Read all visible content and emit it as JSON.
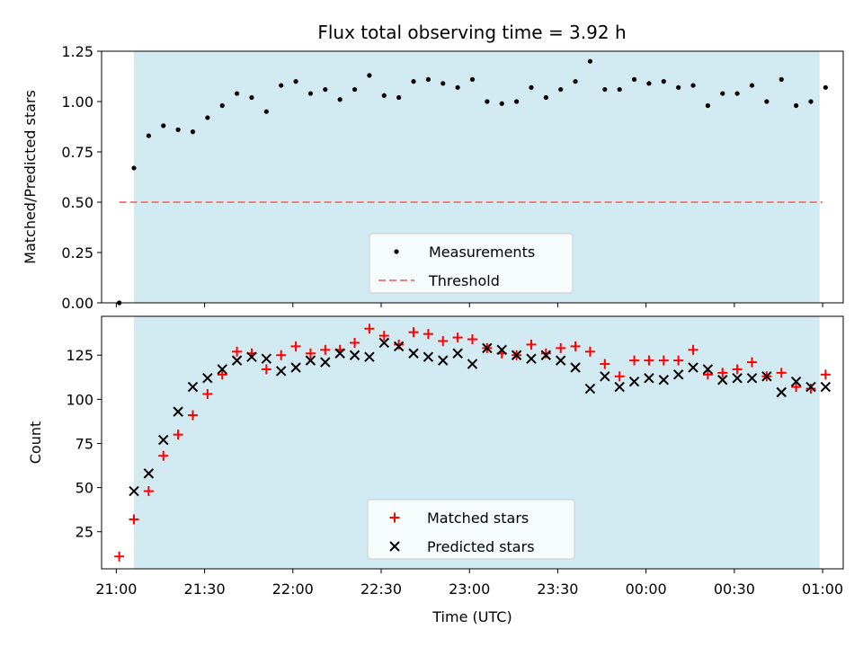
{
  "title": "Flux total observing time = 3.92 h",
  "colors": {
    "shade": "#add8e6",
    "measurement": "#000000",
    "threshold": "#f08080",
    "matched": "#ff0000",
    "predicted": "#000000"
  },
  "chart_data": [
    {
      "type": "scatter",
      "ylabel": "Matched/Predicted stars",
      "ylim": [
        0,
        1.25
      ],
      "yticks": [
        0,
        0.25,
        0.5,
        0.75,
        1.0,
        1.25
      ],
      "ytick_labels": [
        "0.00",
        "0.25",
        "0.50",
        "0.75",
        "1.00",
        "1.25"
      ],
      "shaded_span": [
        "21:06",
        "00:59"
      ],
      "legend": {
        "placement": "lower center",
        "entries": [
          "Measurements",
          "Threshold"
        ]
      },
      "threshold": {
        "name": "Threshold",
        "value": 0.5,
        "x_start": "21:01",
        "x_end": "01:00",
        "style": "dashed"
      },
      "series": [
        {
          "name": "Measurements",
          "marker": "dot",
          "points": [
            [
              "21:01",
              0.0
            ],
            [
              "21:06",
              0.67
            ],
            [
              "21:11",
              0.83
            ],
            [
              "21:16",
              0.88
            ],
            [
              "21:21",
              0.86
            ],
            [
              "21:26",
              0.85
            ],
            [
              "21:31",
              0.92
            ],
            [
              "21:36",
              0.98
            ],
            [
              "21:41",
              1.04
            ],
            [
              "21:46",
              1.02
            ],
            [
              "21:51",
              0.95
            ],
            [
              "21:56",
              1.08
            ],
            [
              "22:01",
              1.1
            ],
            [
              "22:06",
              1.04
            ],
            [
              "22:11",
              1.06
            ],
            [
              "22:16",
              1.01
            ],
            [
              "22:21",
              1.06
            ],
            [
              "22:26",
              1.13
            ],
            [
              "22:31",
              1.03
            ],
            [
              "22:36",
              1.02
            ],
            [
              "22:41",
              1.1
            ],
            [
              "22:46",
              1.11
            ],
            [
              "22:51",
              1.09
            ],
            [
              "22:56",
              1.07
            ],
            [
              "23:01",
              1.11
            ],
            [
              "23:06",
              1.0
            ],
            [
              "23:11",
              0.99
            ],
            [
              "23:16",
              1.0
            ],
            [
              "23:21",
              1.07
            ],
            [
              "23:26",
              1.02
            ],
            [
              "23:31",
              1.06
            ],
            [
              "23:36",
              1.1
            ],
            [
              "23:41",
              1.2
            ],
            [
              "23:46",
              1.06
            ],
            [
              "23:51",
              1.06
            ],
            [
              "23:56",
              1.11
            ],
            [
              "00:01",
              1.09
            ],
            [
              "00:06",
              1.1
            ],
            [
              "00:11",
              1.07
            ],
            [
              "00:16",
              1.08
            ],
            [
              "00:21",
              0.98
            ],
            [
              "00:26",
              1.04
            ],
            [
              "00:31",
              1.04
            ],
            [
              "00:36",
              1.08
            ],
            [
              "00:41",
              1.0
            ],
            [
              "00:46",
              1.11
            ],
            [
              "00:51",
              0.98
            ],
            [
              "00:56",
              1.0
            ],
            [
              "01:01",
              1.07
            ]
          ]
        }
      ]
    },
    {
      "type": "scatter",
      "xlabel": "Time (UTC)",
      "ylabel": "Count",
      "ylim": [
        4,
        147
      ],
      "yticks": [
        25,
        50,
        75,
        100,
        125
      ],
      "ytick_labels": [
        "25",
        "50",
        "75",
        "100",
        "125"
      ],
      "xlim": [
        "20:55",
        "01:07"
      ],
      "xticks": [
        "21:00",
        "21:30",
        "22:00",
        "22:30",
        "23:00",
        "23:30",
        "00:00",
        "00:30",
        "01:00"
      ],
      "xtick_labels": [
        "21:00",
        "21:30",
        "22:00",
        "22:30",
        "23:00",
        "23:30",
        "00:00",
        "00:30",
        "01:00"
      ],
      "shaded_span": [
        "21:06",
        "00:59"
      ],
      "legend": {
        "placement": "lower center",
        "entries": [
          "Matched stars",
          "Predicted stars"
        ]
      },
      "series": [
        {
          "name": "Matched stars",
          "marker": "plus",
          "points": [
            [
              "21:01",
              11
            ],
            [
              "21:06",
              32
            ],
            [
              "21:11",
              48
            ],
            [
              "21:16",
              68
            ],
            [
              "21:21",
              80
            ],
            [
              "21:26",
              91
            ],
            [
              "21:31",
              103
            ],
            [
              "21:36",
              114
            ],
            [
              "21:41",
              127
            ],
            [
              "21:46",
              126
            ],
            [
              "21:51",
              117
            ],
            [
              "21:56",
              125
            ],
            [
              "22:01",
              130
            ],
            [
              "22:06",
              126
            ],
            [
              "22:11",
              128
            ],
            [
              "22:16",
              128
            ],
            [
              "22:21",
              132
            ],
            [
              "22:26",
              140
            ],
            [
              "22:31",
              136
            ],
            [
              "22:36",
              131
            ],
            [
              "22:41",
              138
            ],
            [
              "22:46",
              137
            ],
            [
              "22:51",
              133
            ],
            [
              "22:56",
              135
            ],
            [
              "23:01",
              134
            ],
            [
              "23:06",
              129
            ],
            [
              "23:11",
              126
            ],
            [
              "23:16",
              125
            ],
            [
              "23:21",
              131
            ],
            [
              "23:26",
              126
            ],
            [
              "23:31",
              129
            ],
            [
              "23:36",
              130
            ],
            [
              "23:41",
              127
            ],
            [
              "23:46",
              120
            ],
            [
              "23:51",
              113
            ],
            [
              "23:56",
              122
            ],
            [
              "00:01",
              122
            ],
            [
              "00:06",
              122
            ],
            [
              "00:11",
              122
            ],
            [
              "00:16",
              128
            ],
            [
              "00:21",
              114
            ],
            [
              "00:26",
              115
            ],
            [
              "00:31",
              117
            ],
            [
              "00:36",
              121
            ],
            [
              "00:41",
              113
            ],
            [
              "00:46",
              115
            ],
            [
              "00:51",
              107
            ],
            [
              "00:56",
              106
            ],
            [
              "01:01",
              114
            ]
          ]
        },
        {
          "name": "Predicted stars",
          "marker": "x",
          "points": [
            [
              "21:06",
              48
            ],
            [
              "21:11",
              58
            ],
            [
              "21:16",
              77
            ],
            [
              "21:21",
              93
            ],
            [
              "21:26",
              107
            ],
            [
              "21:31",
              112
            ],
            [
              "21:36",
              117
            ],
            [
              "21:41",
              122
            ],
            [
              "21:46",
              124
            ],
            [
              "21:51",
              123
            ],
            [
              "21:56",
              116
            ],
            [
              "22:01",
              118
            ],
            [
              "22:06",
              122
            ],
            [
              "22:11",
              121
            ],
            [
              "22:16",
              126
            ],
            [
              "22:21",
              125
            ],
            [
              "22:26",
              124
            ],
            [
              "22:31",
              132
            ],
            [
              "22:36",
              130
            ],
            [
              "22:41",
              126
            ],
            [
              "22:46",
              124
            ],
            [
              "22:51",
              122
            ],
            [
              "22:56",
              126
            ],
            [
              "23:01",
              120
            ],
            [
              "23:06",
              129
            ],
            [
              "23:11",
              128
            ],
            [
              "23:16",
              125
            ],
            [
              "23:21",
              123
            ],
            [
              "23:26",
              125
            ],
            [
              "23:31",
              122
            ],
            [
              "23:36",
              118
            ],
            [
              "23:41",
              106
            ],
            [
              "23:46",
              113
            ],
            [
              "23:51",
              107
            ],
            [
              "23:56",
              110
            ],
            [
              "00:01",
              112
            ],
            [
              "00:06",
              111
            ],
            [
              "00:11",
              114
            ],
            [
              "00:16",
              118
            ],
            [
              "00:21",
              117
            ],
            [
              "00:26",
              111
            ],
            [
              "00:31",
              112
            ],
            [
              "00:36",
              112
            ],
            [
              "00:41",
              113
            ],
            [
              "00:46",
              104
            ],
            [
              "00:51",
              110
            ],
            [
              "00:56",
              107
            ],
            [
              "01:01",
              107
            ]
          ]
        }
      ]
    }
  ]
}
